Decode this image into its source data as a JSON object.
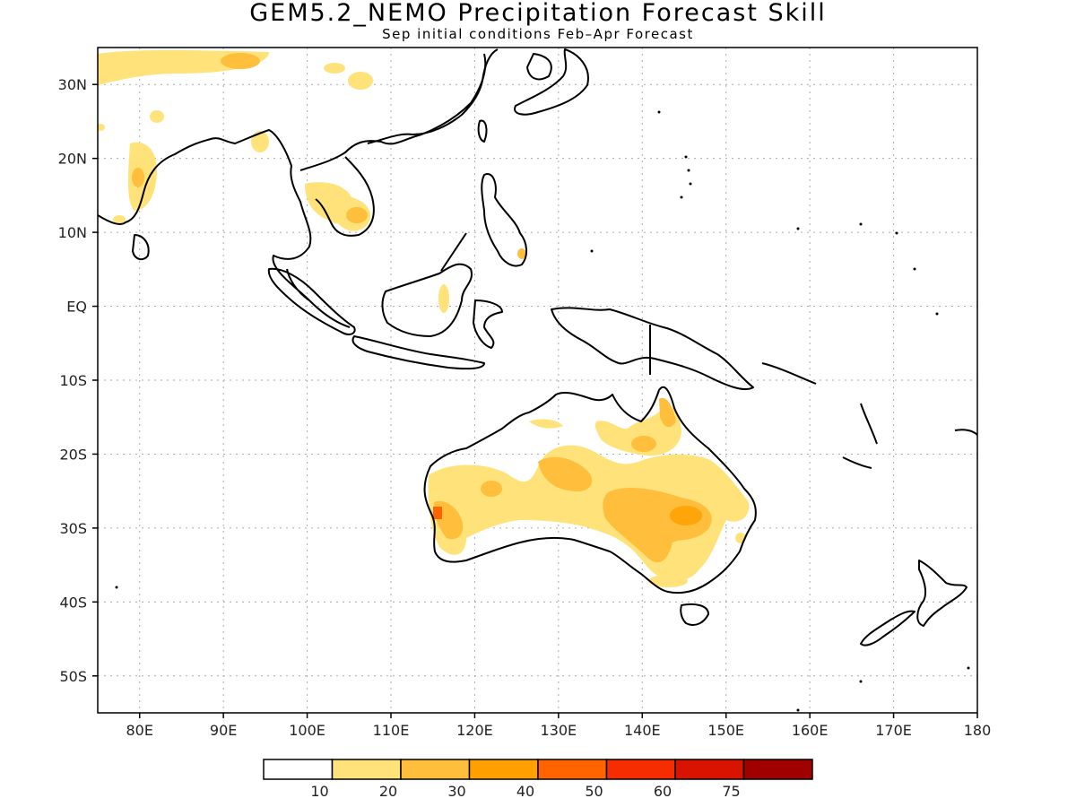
{
  "title": "GEM5.2_NEMO Precipitation Forecast Skill",
  "subtitle": "Sep initial conditions  Feb–Apr Forecast",
  "map": {
    "lon_range": [
      75,
      180
    ],
    "lat_range": [
      -55,
      35
    ],
    "lon_ticks": [
      "80E",
      "90E",
      "100E",
      "110E",
      "120E",
      "130E",
      "140E",
      "150E",
      "160E",
      "170E",
      "180"
    ],
    "lat_ticks": [
      "30N",
      "20N",
      "10N",
      "EQ",
      "10S",
      "20S",
      "30S",
      "40S",
      "50S"
    ],
    "gridlines": true
  },
  "colorbar": {
    "colors": [
      "#ffffff",
      "#ffe37a",
      "#ffbf3c",
      "#ff9f00",
      "#ff6400",
      "#f52d00",
      "#d81400",
      "#a00000"
    ],
    "labels": [
      "10",
      "20",
      "30",
      "40",
      "50",
      "60",
      "75"
    ]
  }
}
